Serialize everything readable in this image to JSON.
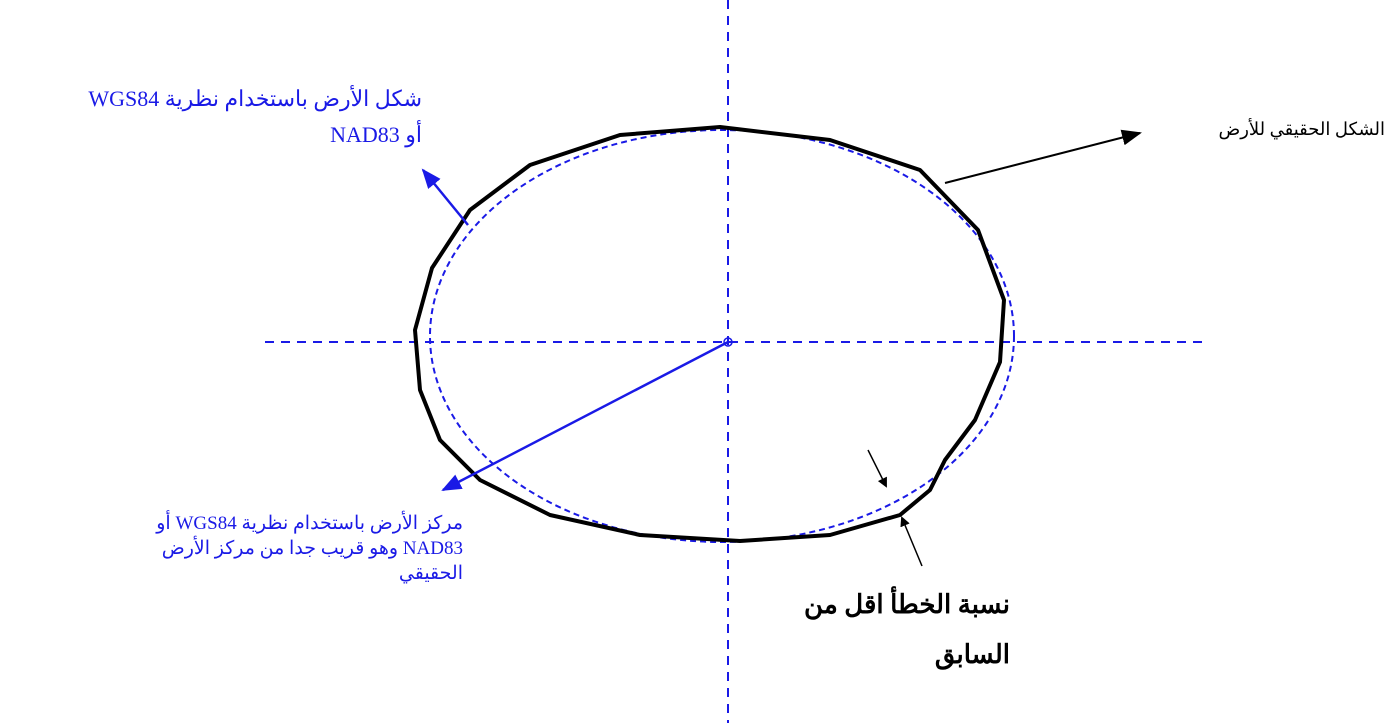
{
  "labels": {
    "model_shape": {
      "lines": [
        "شكل الأرض باستخدام نظرية WGS84",
        "أو NAD83"
      ]
    },
    "true_shape": {
      "lines": [
        "الشكل الحقيقي للأرض"
      ]
    },
    "model_center": {
      "lines": [
        "مركز الأرض باستخدام نظرية WGS84 أو",
        "NAD83 وهو قريب جدا من مركز الأرض",
        "الحقيقي"
      ]
    },
    "error": {
      "lines": [
        "نسبة الخطأ اقل من",
        "السابق"
      ]
    }
  }
}
